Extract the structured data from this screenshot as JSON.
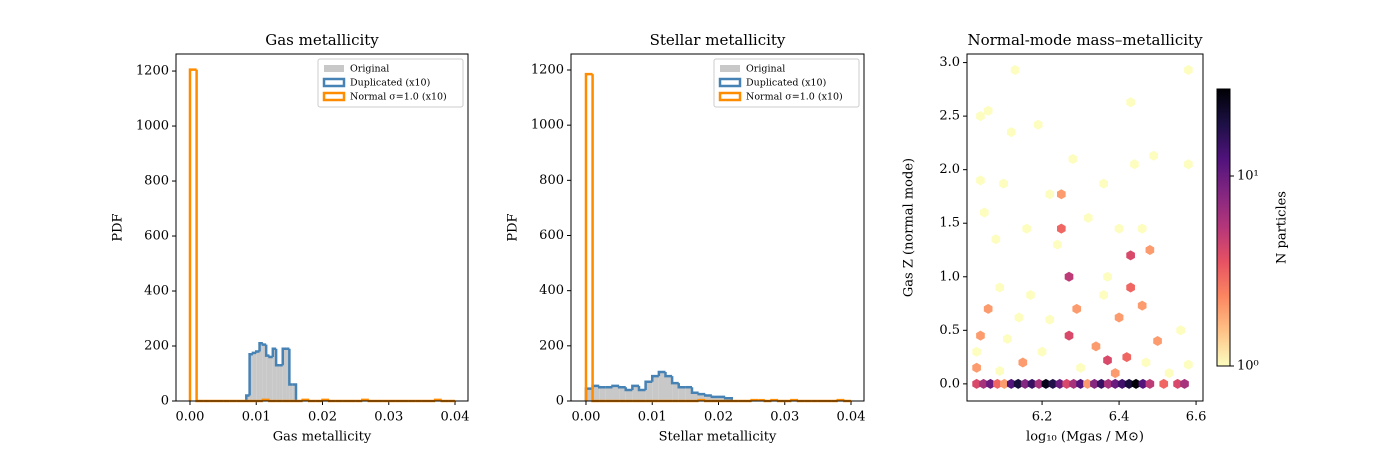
{
  "chart_data": [
    {
      "type": "histogram",
      "title": "Gas metallicity",
      "xlabel": "Gas metallicity",
      "ylabel": "PDF",
      "xlim": [
        -0.00211,
        0.04196
      ],
      "ylim": [
        0,
        1262
      ],
      "xticks": [
        {
          "value": 0,
          "label": "0.00"
        },
        {
          "value": 0.01,
          "label": "0.01"
        },
        {
          "value": 0.02,
          "label": "0.02"
        },
        {
          "value": 0.03,
          "label": "0.03"
        },
        {
          "value": 0.04,
          "label": "0.04"
        }
      ],
      "yticks": [
        0,
        200,
        400,
        600,
        800,
        1000,
        1200
      ],
      "legend": "upper right",
      "series": [
        {
          "name": "Original",
          "color": "#c8c8c8",
          "histtype": "stepfilled",
          "bins": [
            0.0085,
            0.009,
            0.0095,
            0.01,
            0.0105,
            0.011,
            0.0115,
            0.012,
            0.0125,
            0.013,
            0.0135,
            0.014,
            0.0145,
            0.015,
            0.0155,
            0.016
          ],
          "values": [
            20,
            170,
            175,
            180,
            210,
            205,
            165,
            160,
            190,
            130,
            130,
            190,
            190,
            60,
            60
          ]
        },
        {
          "name": "Duplicated (x10)",
          "color": "#4682b4",
          "histtype": "step",
          "bins": [
            0.0085,
            0.009,
            0.0095,
            0.01,
            0.0105,
            0.011,
            0.0115,
            0.012,
            0.0125,
            0.013,
            0.0135,
            0.014,
            0.0145,
            0.015,
            0.0155,
            0.016
          ],
          "values": [
            20,
            170,
            175,
            180,
            210,
            205,
            165,
            160,
            190,
            130,
            130,
            190,
            190,
            60,
            60
          ]
        },
        {
          "name": "Normal σ=1.0 (x10)",
          "color": "#ff8c00",
          "histtype": "step",
          "bins": [
            0,
            0.001,
            0.002,
            0.003,
            0.004,
            0.005,
            0.006,
            0.007,
            0.008,
            0.009,
            0.01,
            0.011,
            0.012,
            0.013,
            0.014,
            0.015,
            0.016,
            0.017,
            0.018,
            0.019,
            0.02,
            0.021,
            0.022,
            0.023,
            0.024,
            0.025,
            0.026,
            0.027,
            0.028,
            0.029,
            0.03,
            0.031,
            0.032,
            0.033,
            0.034,
            0.035,
            0.036,
            0.037,
            0.038,
            0.039,
            0.04
          ],
          "values": [
            1205,
            0,
            0,
            0,
            0,
            0,
            0,
            0,
            0,
            0,
            0,
            4,
            0,
            0,
            0,
            0,
            0,
            4,
            0,
            0,
            4,
            0,
            0,
            0,
            0,
            0,
            4,
            0,
            0,
            0,
            0,
            0,
            0,
            0,
            0,
            0,
            0,
            4,
            0,
            0
          ]
        }
      ]
    },
    {
      "type": "histogram",
      "title": "Stellar metallicity",
      "xlabel": "Stellar metallicity",
      "ylabel": "PDF",
      "xlim": [
        -0.00226,
        0.04196
      ],
      "ylim": [
        0,
        1258
      ],
      "xticks": [
        {
          "value": 0,
          "label": "0.00"
        },
        {
          "value": 0.01,
          "label": "0.01"
        },
        {
          "value": 0.02,
          "label": "0.02"
        },
        {
          "value": 0.03,
          "label": "0.03"
        },
        {
          "value": 0.04,
          "label": "0.04"
        }
      ],
      "yticks": [
        0,
        200,
        400,
        600,
        800,
        1000,
        1200
      ],
      "legend": "upper right",
      "series": [
        {
          "name": "Original",
          "color": "#c8c8c8",
          "histtype": "stepfilled",
          "bins": [
            0,
            0.001,
            0.002,
            0.003,
            0.004,
            0.005,
            0.006,
            0.007,
            0.008,
            0.009,
            0.01,
            0.011,
            0.012,
            0.013,
            0.014,
            0.015,
            0.016,
            0.017,
            0.018,
            0.019,
            0.02,
            0.021,
            0.022
          ],
          "values": [
            45,
            55,
            50,
            50,
            55,
            50,
            40,
            55,
            40,
            70,
            90,
            105,
            90,
            65,
            50,
            50,
            30,
            25,
            20,
            15,
            15,
            10
          ]
        },
        {
          "name": "Duplicated (x10)",
          "color": "#4682b4",
          "histtype": "step",
          "bins": [
            0,
            0.001,
            0.002,
            0.003,
            0.004,
            0.005,
            0.006,
            0.007,
            0.008,
            0.009,
            0.01,
            0.011,
            0.012,
            0.013,
            0.014,
            0.015,
            0.016,
            0.017,
            0.018,
            0.019,
            0.02,
            0.021,
            0.022
          ],
          "values": [
            45,
            55,
            50,
            50,
            55,
            50,
            40,
            55,
            40,
            70,
            90,
            105,
            90,
            65,
            50,
            50,
            30,
            25,
            20,
            15,
            15,
            10
          ]
        },
        {
          "name": "Normal σ=1.0 (x10)",
          "color": "#ff8c00",
          "histtype": "step",
          "bins": [
            0,
            0.001,
            0.002,
            0.003,
            0.004,
            0.005,
            0.006,
            0.007,
            0.008,
            0.009,
            0.01,
            0.011,
            0.012,
            0.013,
            0.014,
            0.015,
            0.016,
            0.017,
            0.018,
            0.019,
            0.02,
            0.021,
            0.022,
            0.023,
            0.024,
            0.025,
            0.026,
            0.027,
            0.028,
            0.029,
            0.03,
            0.031,
            0.032,
            0.033,
            0.034,
            0.035,
            0.036,
            0.037,
            0.038,
            0.039,
            0.04
          ],
          "values": [
            1185,
            0,
            0,
            0,
            0,
            0,
            0,
            0,
            0,
            0,
            0,
            0,
            0,
            0,
            0,
            0,
            0,
            3,
            0,
            0,
            0,
            0,
            0,
            0,
            0,
            3,
            3,
            0,
            3,
            0,
            0,
            3,
            0,
            0,
            0,
            0,
            0,
            0,
            3,
            0
          ]
        }
      ]
    },
    {
      "type": "hexbin",
      "title": "Normal-mode mass–metallicity",
      "xlabel": "log₁₀ (Mgas / M⊙)",
      "ylabel": "Gas Z  (normal mode)",
      "colorbar_label": "N particles",
      "xlim": [
        6.005,
        6.618
      ],
      "ylim": [
        -0.16,
        3.08
      ],
      "xticks": [
        6.2,
        6.4,
        6.6
      ],
      "yticks": [
        {
          "value": 0,
          "label": "0.0"
        },
        {
          "value": 0.5,
          "label": "0.5"
        },
        {
          "value": 1,
          "label": "1.0"
        },
        {
          "value": 1.5,
          "label": "1.5"
        },
        {
          "value": 2,
          "label": "2.0"
        },
        {
          "value": 2.5,
          "label": "2.5"
        },
        {
          "value": 3,
          "label": "3.0"
        }
      ],
      "clim": [
        1,
        28.7
      ],
      "color_scale": "log",
      "cticks": [
        {
          "value": 1,
          "label": "10⁰"
        },
        {
          "value": 10,
          "label": "10¹"
        }
      ],
      "colormap": [
        "#fcfdbf",
        "#fec287",
        "#fb8761",
        "#e75263",
        "#b5367a",
        "#822681",
        "#4f127b",
        "#1c1044",
        "#000004"
      ],
      "x": [
        6.03,
        6.048,
        6.066,
        6.084,
        6.102,
        6.12,
        6.138,
        6.156,
        6.174,
        6.192,
        6.21,
        6.228,
        6.246,
        6.264,
        6.282,
        6.3,
        6.318,
        6.336,
        6.354,
        6.372,
        6.39,
        6.408,
        6.426,
        6.444,
        6.462,
        6.48,
        6.516,
        6.552,
        6.57,
        6.04,
        6.06,
        6.04,
        6.05,
        6.13,
        6.12,
        6.19,
        6.43,
        6.58,
        6.58,
        6.28,
        6.49,
        6.44,
        6.25,
        6.1,
        6.22,
        6.36,
        6.16,
        6.25,
        6.32,
        6.46,
        6.08,
        6.4,
        6.24,
        6.48,
        6.43,
        6.27,
        6.37,
        6.09,
        6.17,
        6.36,
        6.43,
        6.46,
        6.29,
        6.06,
        6.14,
        6.22,
        6.4,
        6.56,
        6.27,
        6.04,
        6.11,
        6.34,
        6.5,
        6.2,
        6.03,
        6.42,
        6.37,
        6.15,
        6.47,
        6.58,
        6.3,
        6.09,
        6.53,
        6.03,
        6.39
      ],
      "y": [
        0,
        0,
        0,
        0,
        0,
        0,
        0,
        0,
        0,
        0,
        0,
        0,
        0,
        0,
        0,
        0,
        0,
        0,
        0,
        0,
        0,
        0,
        0,
        0,
        0,
        0,
        0,
        0,
        0,
        2.5,
        2.55,
        1.9,
        1.6,
        2.93,
        2.35,
        2.42,
        2.63,
        2.93,
        2.05,
        2.1,
        2.13,
        2.05,
        1.77,
        1.87,
        1.77,
        1.87,
        1.45,
        1.45,
        1.55,
        1.45,
        1.35,
        1.45,
        1.3,
        1.25,
        1.2,
        1.0,
        1.0,
        0.9,
        0.83,
        0.83,
        0.9,
        0.73,
        0.7,
        0.7,
        0.62,
        0.6,
        0.62,
        0.5,
        0.45,
        0.45,
        0.42,
        0.35,
        0.4,
        0.3,
        0.3,
        0.25,
        0.22,
        0.2,
        0.2,
        0.18,
        0.15,
        0.12,
        0.1,
        0.15,
        0.1
      ],
      "counts": [
        4,
        6,
        10,
        3,
        2,
        12,
        20,
        8,
        15,
        6,
        25,
        18,
        10,
        4,
        6,
        12,
        2,
        8,
        15,
        6,
        10,
        14,
        20,
        28,
        12,
        5,
        3,
        4,
        6,
        1,
        1,
        1,
        1,
        1,
        1,
        1,
        1,
        1,
        1,
        1,
        1,
        1,
        2,
        1,
        1,
        1,
        1,
        3,
        1,
        1,
        1,
        1,
        1,
        2,
        4,
        5,
        1,
        1,
        1,
        1,
        3,
        2,
        2,
        2,
        1,
        1,
        2,
        1,
        4,
        2,
        1,
        2,
        2,
        1,
        1,
        3,
        4,
        2,
        1,
        1,
        1,
        1,
        1,
        2,
        2
      ]
    }
  ]
}
